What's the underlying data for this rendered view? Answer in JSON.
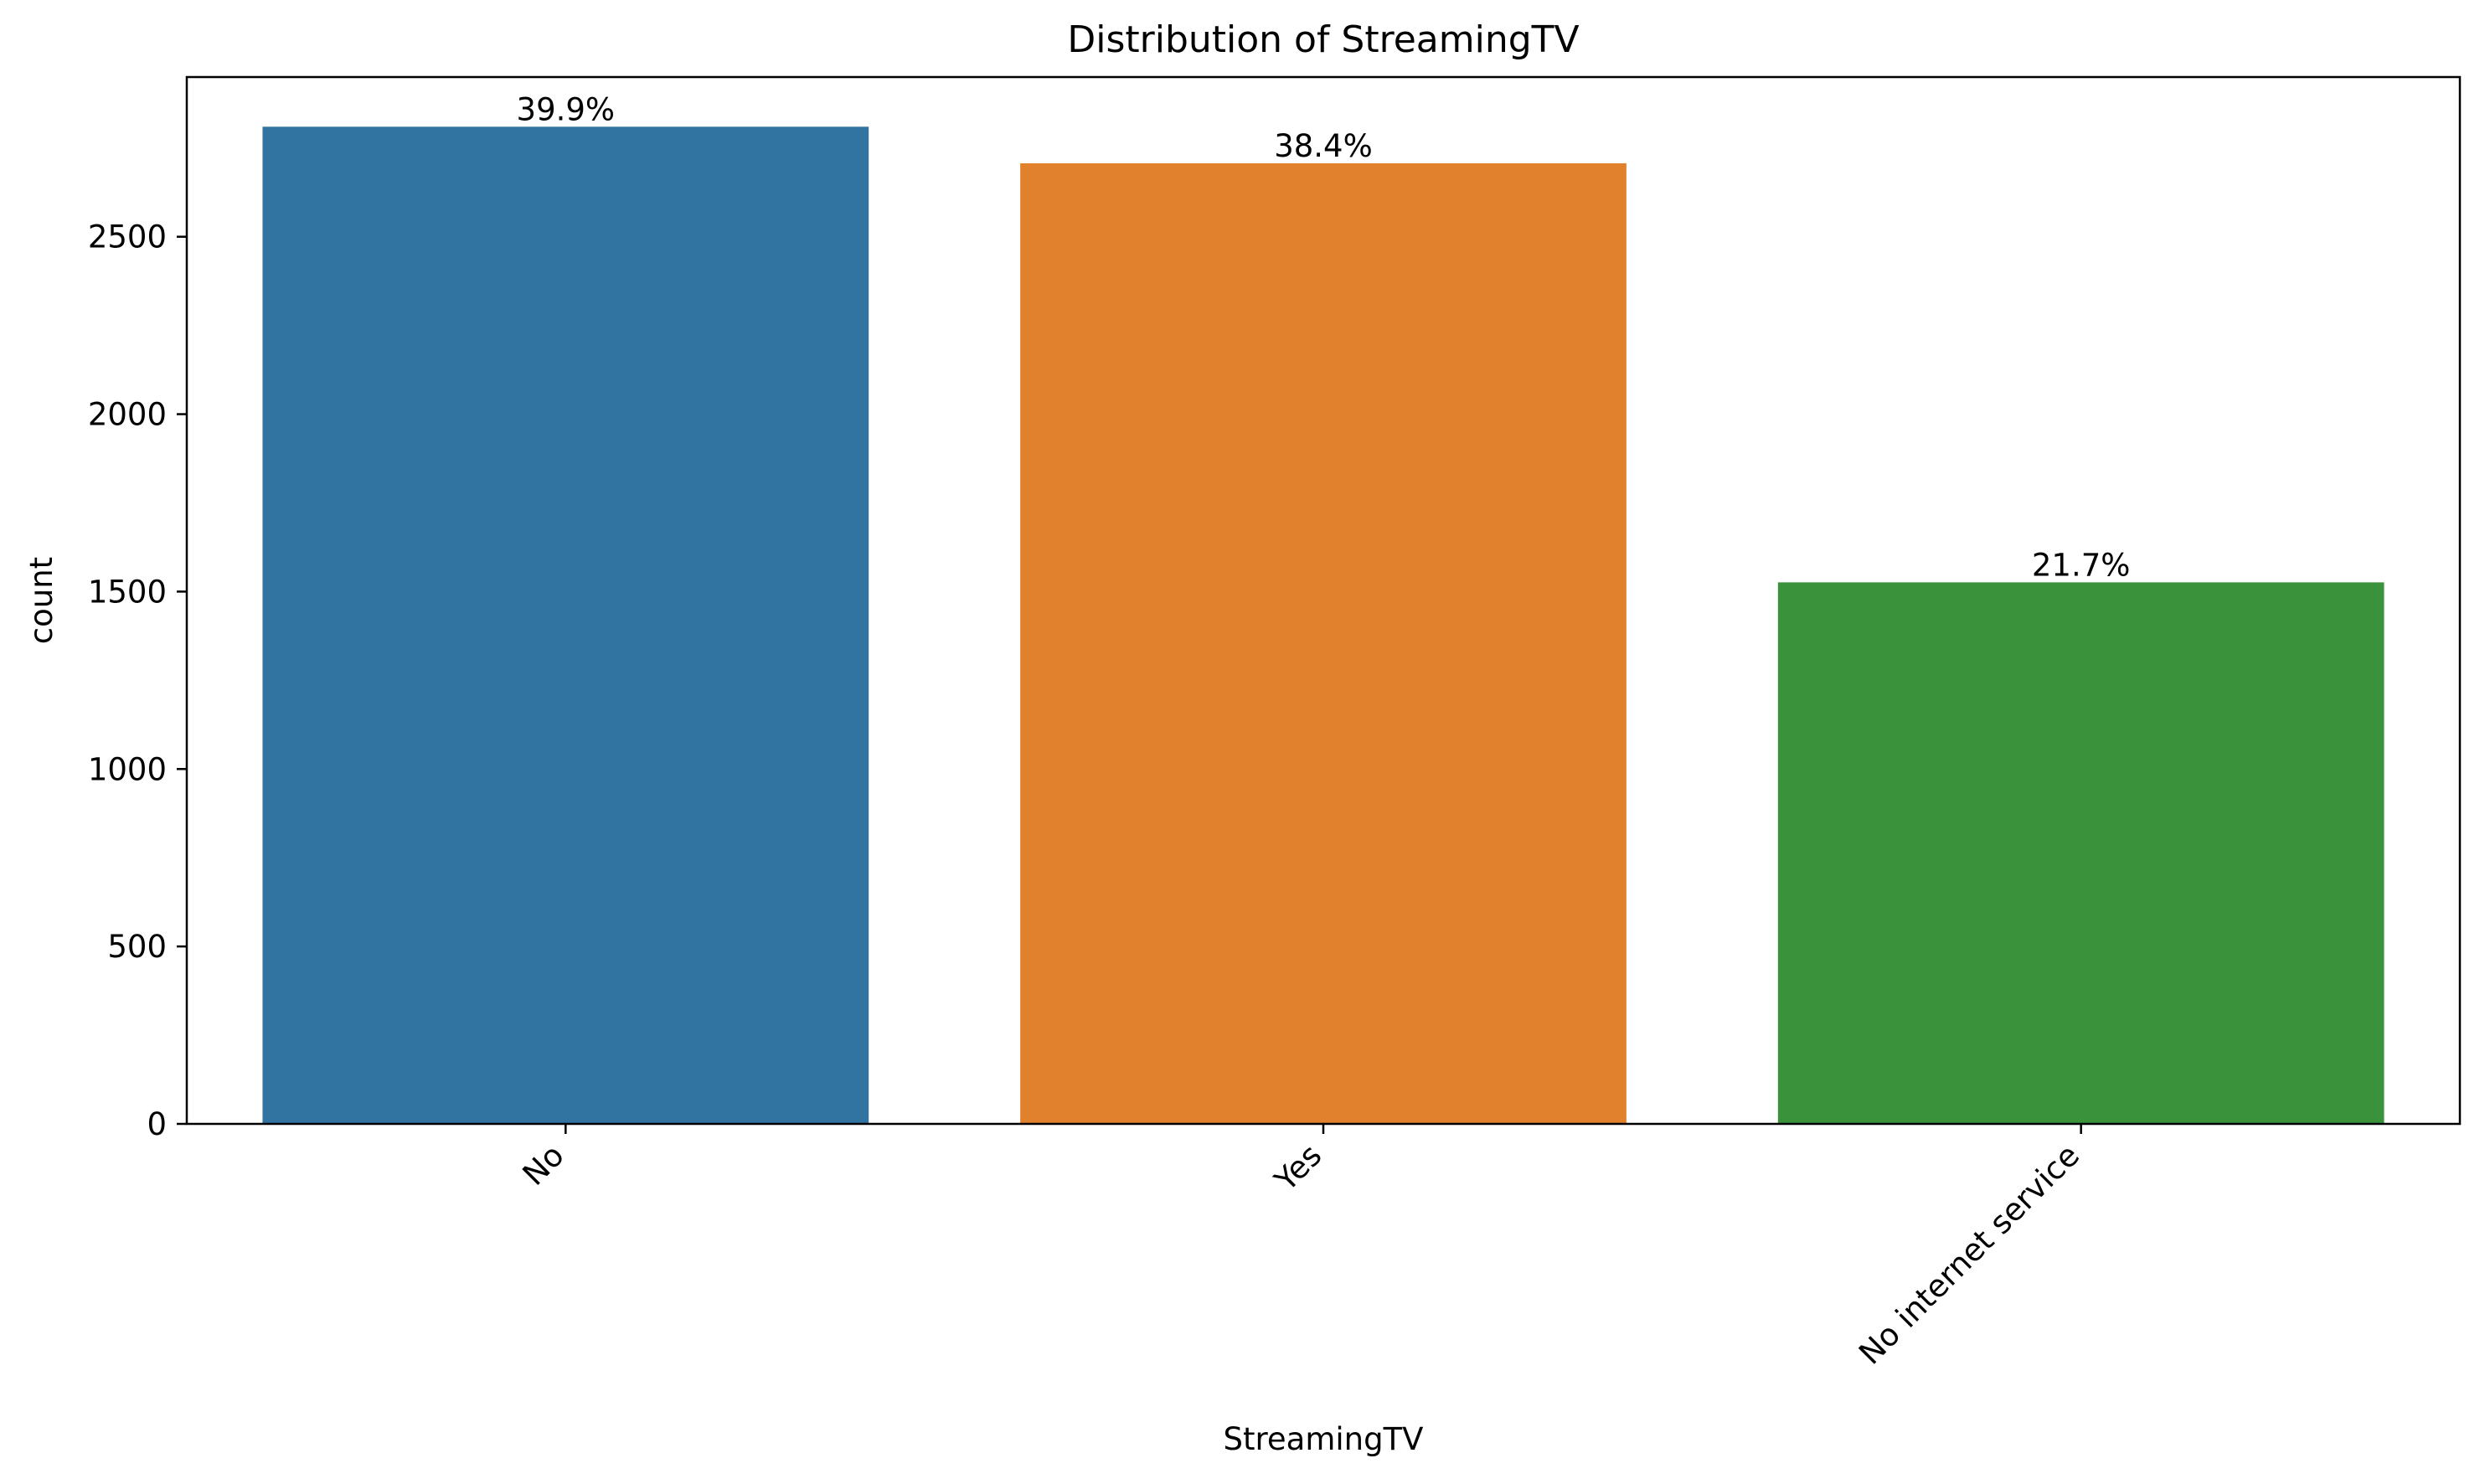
{
  "chart_data": {
    "type": "bar",
    "title": "Distribution of StreamingTV",
    "xlabel": "StreamingTV",
    "ylabel": "count",
    "categories": [
      "No",
      "Yes",
      "No internet service"
    ],
    "values": [
      2810,
      2707,
      1526
    ],
    "bar_labels": [
      "39.9%",
      "38.4%",
      "21.7%"
    ],
    "colors": [
      "#3274a1",
      "#e1812c",
      "#3a923a"
    ],
    "ylim": [
      0,
      2950
    ],
    "yticks": [
      0,
      500,
      1000,
      1500,
      2000,
      2500
    ],
    "ytick_labels": [
      "0",
      "500",
      "1000",
      "1500",
      "2000",
      "2500"
    ],
    "grid": false,
    "legend": "none"
  }
}
